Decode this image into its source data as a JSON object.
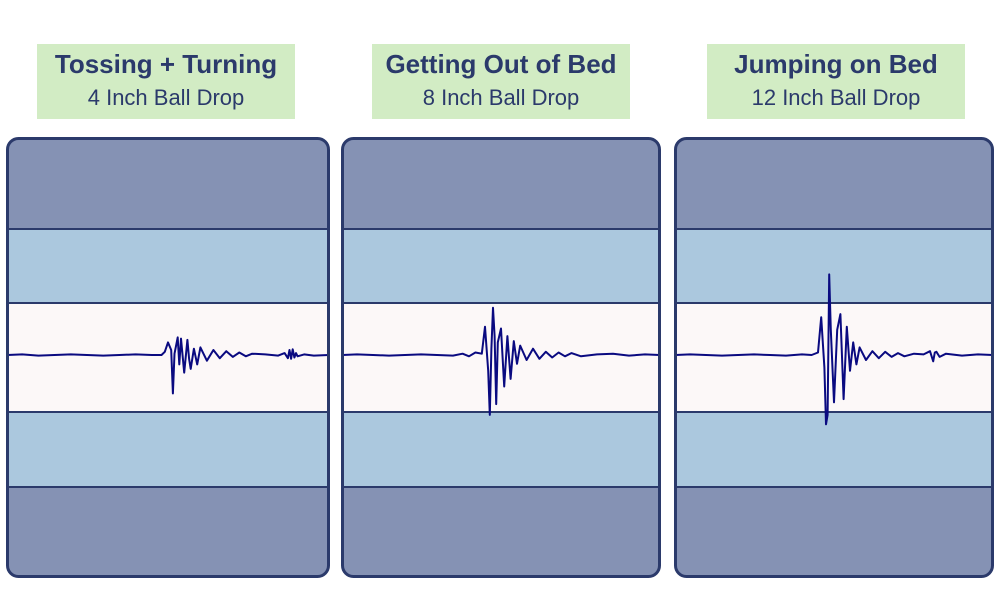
{
  "panels": [
    {
      "title": "Tossing + Turning",
      "subtitle": "4 Inch Ball Drop"
    },
    {
      "title": "Getting Out of Bed",
      "subtitle": "8 Inch Ball Drop"
    },
    {
      "title": "Jumping on Bed",
      "subtitle": "12 Inch Ball Drop"
    }
  ],
  "colors": {
    "label_bg": "#d2ecc4",
    "label_text": "#2b3a6b",
    "band_outer": "#8592b4",
    "band_mid": "#abc8de",
    "band_center": "#fcf8f8",
    "border": "#2b3a6b",
    "trace": "#0a0a80"
  },
  "chart_data": [
    {
      "type": "line",
      "title": "Tossing + Turning",
      "subtitle": "4 Inch Ball Drop",
      "xlim": [
        0,
        1
      ],
      "ylim": [
        -1,
        1
      ],
      "series": [
        {
          "x": [
            0.0,
            0.05,
            0.1,
            0.15,
            0.2,
            0.25,
            0.3,
            0.35,
            0.4,
            0.45,
            0.48,
            0.49,
            0.5,
            0.51,
            0.515,
            0.52,
            0.53,
            0.535,
            0.54,
            0.55,
            0.56,
            0.565,
            0.57,
            0.58,
            0.59,
            0.6,
            0.62,
            0.64,
            0.66,
            0.68,
            0.7,
            0.72,
            0.74,
            0.76,
            0.8,
            0.84,
            0.86,
            0.87,
            0.875,
            0.88,
            0.885,
            0.89,
            0.895,
            0.9,
            0.92,
            0.95,
            1.0
          ],
          "y": [
            0.0,
            0.01,
            -0.01,
            0.0,
            0.01,
            0.0,
            -0.01,
            0.0,
            0.01,
            0.0,
            0.0,
            0.05,
            0.2,
            0.08,
            -0.61,
            0.02,
            0.28,
            -0.15,
            0.26,
            -0.28,
            0.24,
            -0.06,
            -0.22,
            0.1,
            -0.15,
            0.12,
            -0.09,
            0.08,
            -0.05,
            0.06,
            -0.03,
            0.04,
            -0.02,
            0.02,
            0.01,
            -0.01,
            0.03,
            -0.05,
            0.08,
            -0.06,
            0.09,
            -0.04,
            0.03,
            -0.02,
            0.01,
            -0.01,
            0.0
          ]
        }
      ]
    },
    {
      "type": "line",
      "title": "Getting Out of Bed",
      "subtitle": "8 Inch Ball Drop",
      "xlim": [
        0,
        1
      ],
      "ylim": [
        -1,
        1
      ],
      "series": [
        {
          "x": [
            0.0,
            0.05,
            0.1,
            0.15,
            0.2,
            0.25,
            0.3,
            0.35,
            0.38,
            0.4,
            0.42,
            0.44,
            0.45,
            0.46,
            0.465,
            0.47,
            0.475,
            0.48,
            0.485,
            0.49,
            0.5,
            0.51,
            0.52,
            0.53,
            0.54,
            0.55,
            0.56,
            0.58,
            0.6,
            0.62,
            0.64,
            0.66,
            0.68,
            0.7,
            0.72,
            0.75,
            0.8,
            0.85,
            0.9,
            0.95,
            1.0
          ],
          "y": [
            0.0,
            0.01,
            0.0,
            -0.01,
            0.0,
            0.01,
            0.0,
            -0.01,
            0.02,
            -0.02,
            0.04,
            0.02,
            0.45,
            -0.25,
            -0.95,
            0.1,
            0.75,
            0.3,
            -0.78,
            0.2,
            0.42,
            -0.5,
            0.3,
            -0.38,
            0.22,
            -0.14,
            0.15,
            -0.08,
            0.1,
            -0.06,
            0.05,
            -0.04,
            0.04,
            -0.02,
            0.03,
            -0.02,
            0.01,
            0.02,
            -0.01,
            0.01,
            0.0
          ]
        }
      ]
    },
    {
      "type": "line",
      "title": "Jumping on Bed",
      "subtitle": "12 Inch Ball Drop",
      "xlim": [
        0,
        1
      ],
      "ylim": [
        -1,
        1
      ],
      "series": [
        {
          "x": [
            0.0,
            0.05,
            0.1,
            0.15,
            0.2,
            0.25,
            0.3,
            0.35,
            0.4,
            0.43,
            0.45,
            0.46,
            0.47,
            0.475,
            0.48,
            0.485,
            0.49,
            0.5,
            0.51,
            0.52,
            0.53,
            0.54,
            0.55,
            0.56,
            0.57,
            0.58,
            0.6,
            0.62,
            0.64,
            0.66,
            0.68,
            0.7,
            0.72,
            0.75,
            0.78,
            0.8,
            0.81,
            0.815,
            0.82,
            0.83,
            0.85,
            0.9,
            0.95,
            1.0
          ],
          "y": [
            0.0,
            0.01,
            0.0,
            -0.01,
            0.0,
            0.01,
            0.0,
            -0.01,
            0.01,
            0.0,
            0.04,
            0.6,
            -0.2,
            -1.1,
            -0.95,
            1.28,
            0.4,
            -0.75,
            0.4,
            0.65,
            -0.7,
            0.45,
            -0.25,
            0.2,
            -0.15,
            0.12,
            -0.08,
            0.06,
            -0.05,
            0.05,
            -0.03,
            0.03,
            -0.02,
            0.02,
            0.01,
            0.06,
            -0.1,
            0.04,
            0.05,
            -0.03,
            0.02,
            -0.01,
            0.01,
            0.0
          ]
        }
      ]
    }
  ]
}
